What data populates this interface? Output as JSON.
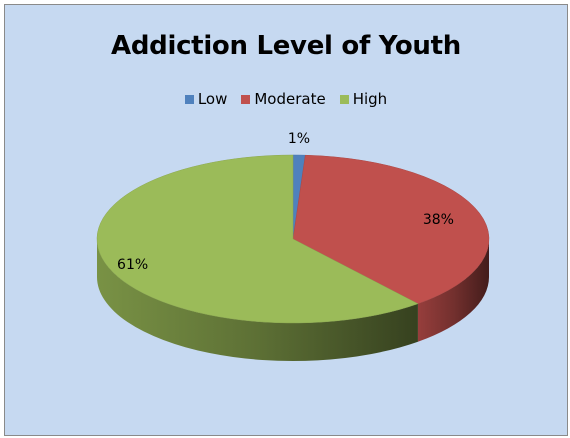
{
  "chart_data": {
    "type": "pie",
    "title": "Addiction Level of Youth",
    "categories": [
      "Low",
      "Moderate",
      "High"
    ],
    "values": [
      1,
      38,
      61
    ],
    "data_labels": [
      "1%",
      "38%",
      "61%"
    ],
    "legend": "top",
    "colors": {
      "Low": "#4f81bd",
      "Moderate": "#c0504d",
      "High": "#9bbb59"
    }
  }
}
